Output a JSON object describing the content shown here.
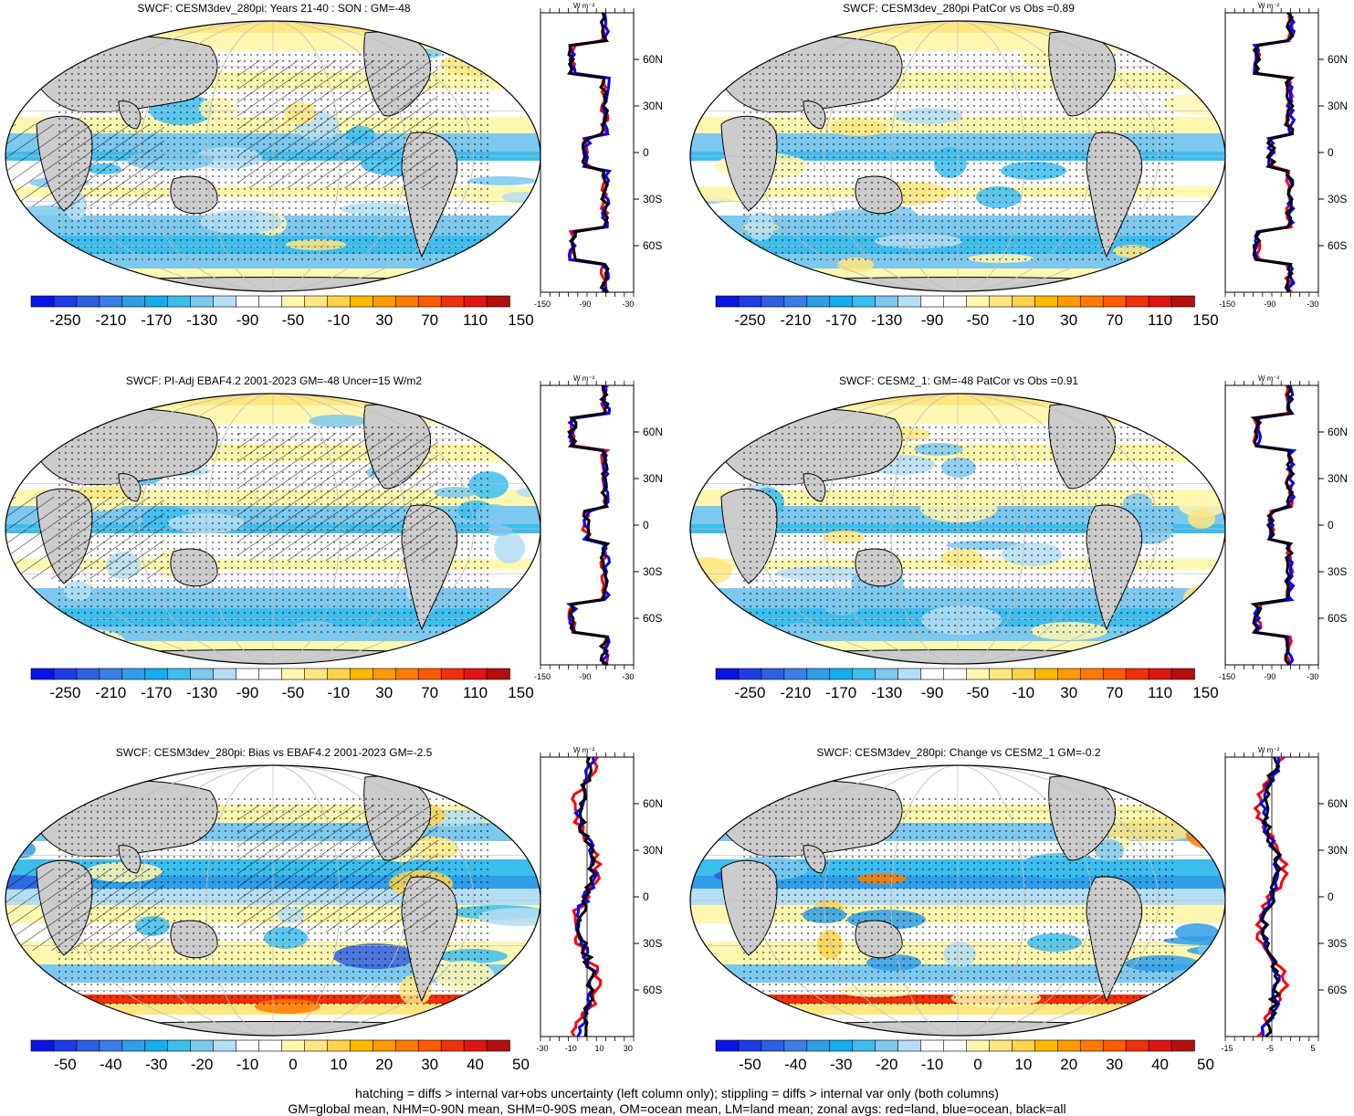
{
  "panels": [
    {
      "id": "p1",
      "title": "SWCF: CESM3dev_280pi: Years 21-40 : SON : GM=-48",
      "colorbar_ticks": [
        "-250",
        "-210",
        "-170",
        "-130",
        "-90",
        "-50",
        "-10",
        "30",
        "70",
        "110",
        "150"
      ],
      "zonal_xticks": [
        "-150",
        "-90",
        "-30"
      ],
      "lat_labels": [
        "60N",
        "30N",
        "0",
        "30S",
        "60S"
      ],
      "unit": "W m⁻²",
      "style": "abs",
      "hatch": true
    },
    {
      "id": "p2",
      "title": "SWCF: CESM3dev_280pi PatCor vs Obs =0.89",
      "colorbar_ticks": [
        "-250",
        "-210",
        "-170",
        "-130",
        "-90",
        "-50",
        "-10",
        "30",
        "70",
        "110",
        "150"
      ],
      "zonal_xticks": [
        "-150",
        "-90",
        "-30"
      ],
      "lat_labels": [
        "60N",
        "30N",
        "0",
        "30S",
        "60S"
      ],
      "unit": "W m⁻²",
      "style": "abs",
      "hatch": false
    },
    {
      "id": "p3",
      "title": "SWCF: PI-Adj EBAF4.2 2001-2023 GM=-48 Uncer=15 W/m2",
      "colorbar_ticks": [
        "-250",
        "-210",
        "-170",
        "-130",
        "-90",
        "-50",
        "-10",
        "30",
        "70",
        "110",
        "150"
      ],
      "zonal_xticks": [
        "-150",
        "-90",
        "-30"
      ],
      "lat_labels": [
        "60N",
        "30N",
        "0",
        "30S",
        "60S"
      ],
      "unit": "W m⁻²",
      "style": "abs",
      "hatch": true
    },
    {
      "id": "p4",
      "title": "SWCF: CESM2_1: GM=-48 PatCor vs Obs =0.91",
      "colorbar_ticks": [
        "-250",
        "-210",
        "-170",
        "-130",
        "-90",
        "-50",
        "-10",
        "30",
        "70",
        "110",
        "150"
      ],
      "zonal_xticks": [
        "-150",
        "-90",
        "-30"
      ],
      "lat_labels": [
        "60N",
        "30N",
        "0",
        "30S",
        "60S"
      ],
      "unit": "W m⁻²",
      "style": "abs",
      "hatch": false
    },
    {
      "id": "p5",
      "title": "SWCF: CESM3dev_280pi: Bias vs EBAF4.2 2001-2023  GM=-2.5",
      "colorbar_ticks": [
        "-50",
        "-40",
        "-30",
        "-20",
        "-10",
        "0",
        "10",
        "20",
        "30",
        "40",
        "50"
      ],
      "zonal_xticks": [
        "-30",
        "-10",
        "10",
        "30"
      ],
      "lat_labels": [
        "60N",
        "30N",
        "0",
        "30S",
        "60S"
      ],
      "unit": "W m⁻²",
      "style": "diff",
      "hatch": true
    },
    {
      "id": "p6",
      "title": "SWCF: CESM3dev_280pi: Change vs CESM2_1 GM=-0.2",
      "colorbar_ticks": [
        "-50",
        "-40",
        "-30",
        "-20",
        "-10",
        "0",
        "10",
        "20",
        "30",
        "40",
        "50"
      ],
      "zonal_xticks": [
        "-15",
        "-5",
        "5"
      ],
      "lat_labels": [
        "60N",
        "30N",
        "0",
        "30S",
        "60S"
      ],
      "unit": "W m⁻²",
      "style": "diff",
      "hatch": false
    }
  ],
  "palette": [
    "#0a14e6",
    "#1e3ce6",
    "#2d5fe0",
    "#3a7fe8",
    "#2f9ee8",
    "#12aef0",
    "#3cbdee",
    "#7cc8ee",
    "#b4def4",
    "#ffffff",
    "#ffffff",
    "#fff7b0",
    "#ffe680",
    "#ffd24a",
    "#ffb800",
    "#ff9a00",
    "#ff7a00",
    "#ff5a00",
    "#f0300a",
    "#e01414",
    "#b40f0f"
  ],
  "colors": {
    "land": "#cccccc",
    "ocean_line": "#000000",
    "zonal_land": "#ff0000",
    "zonal_ocean": "#0000ff",
    "zonal_all": "#000000"
  },
  "footer": {
    "line1": "hatching = diffs > internal var+obs uncertainty (left column only); stippling = diffs > internal var only (both columns)",
    "line2": "GM=global mean, NHM=0-90N mean, SHM=0-90S mean, OM=ocean mean, LM=land mean; zonal avgs: red=land, blue=ocean, black=all"
  }
}
